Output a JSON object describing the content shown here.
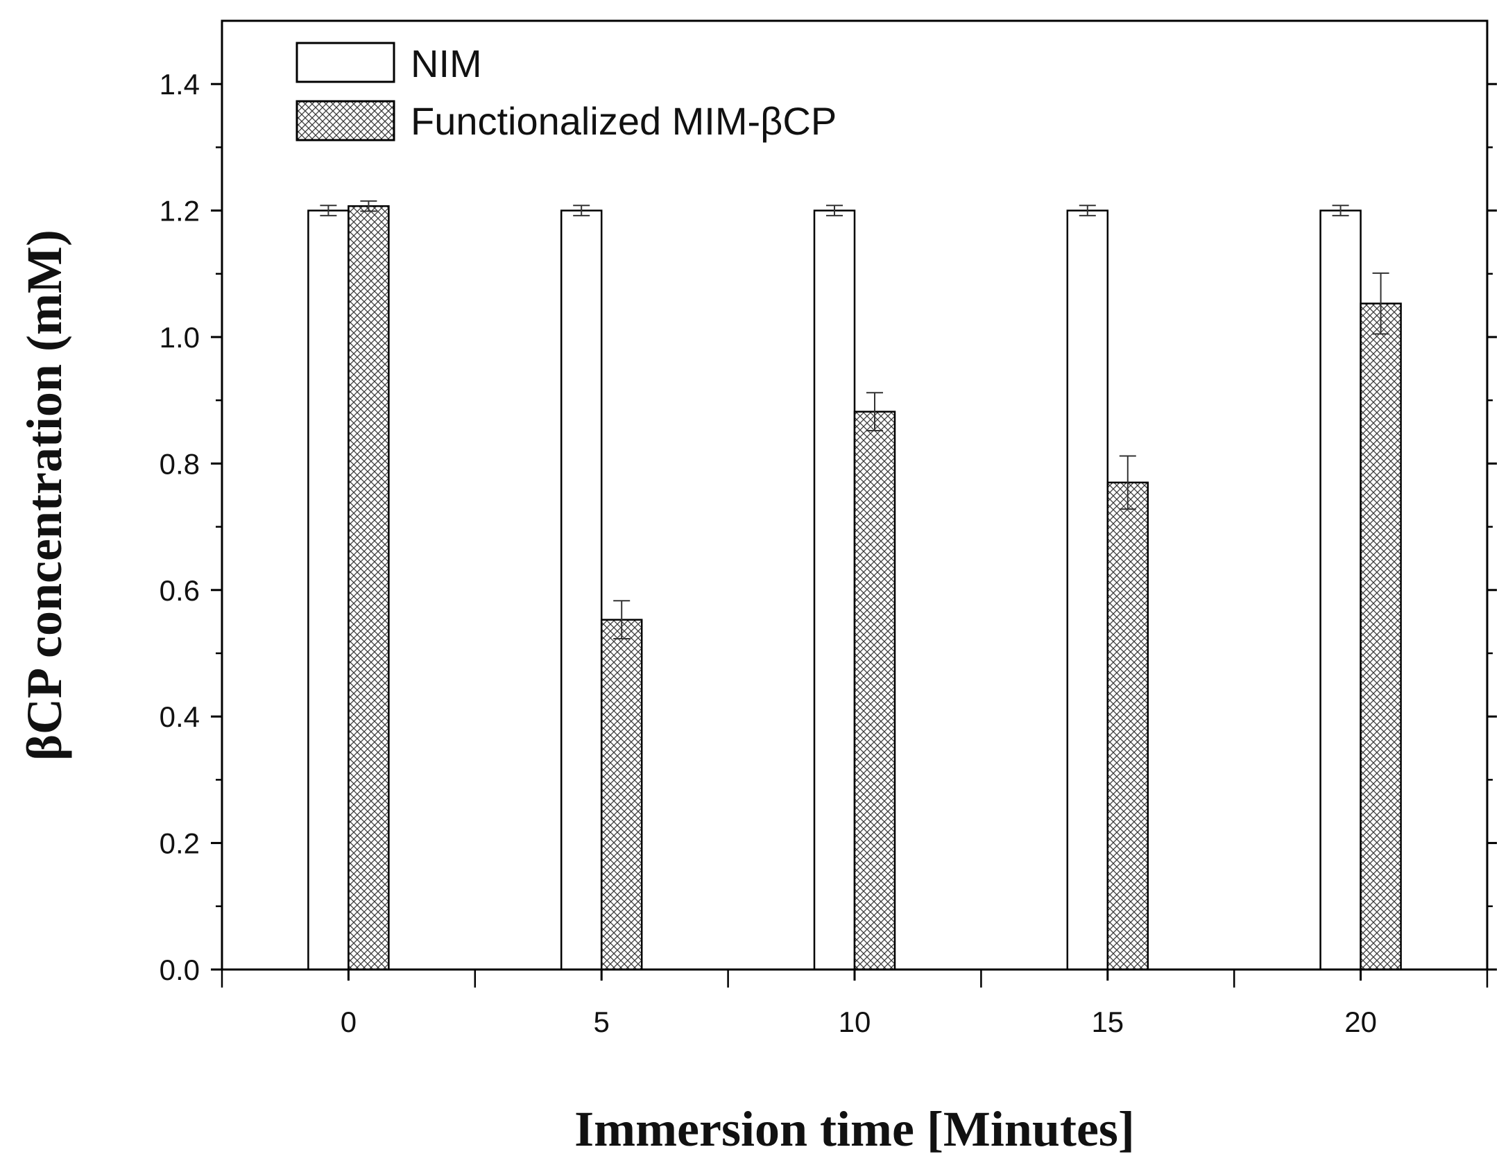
{
  "chart_data": {
    "type": "bar",
    "title": "",
    "xlabel": "Immersion time [Minutes]",
    "ylabel": "βCP concentration (mM)",
    "categories": [
      "0",
      "5",
      "10",
      "15",
      "20"
    ],
    "x": [
      0,
      5,
      10,
      15,
      20
    ],
    "xlim": [
      -2.5,
      22.5
    ],
    "ylim": [
      0,
      1.5
    ],
    "yticks": [
      0.0,
      0.2,
      0.4,
      0.6,
      0.8,
      1.0,
      1.2,
      1.4
    ],
    "ytick_labels": [
      "0.0",
      "0.2",
      "0.4",
      "0.6",
      "0.8",
      "1.0",
      "1.2",
      "1.4"
    ],
    "grid": false,
    "legend_position": "top-left",
    "series": [
      {
        "name": "NIM",
        "pattern": "none",
        "values": [
          1.2,
          1.2,
          1.2,
          1.2,
          1.2
        ],
        "errors": [
          0.008,
          0.008,
          0.008,
          0.008,
          0.008
        ]
      },
      {
        "name": "Functionalized MIM-βCP",
        "pattern": "crosshatch",
        "values": [
          1.207,
          0.553,
          0.882,
          0.77,
          1.053
        ],
        "errors": [
          0.008,
          0.03,
          0.03,
          0.042,
          0.048
        ]
      }
    ]
  }
}
